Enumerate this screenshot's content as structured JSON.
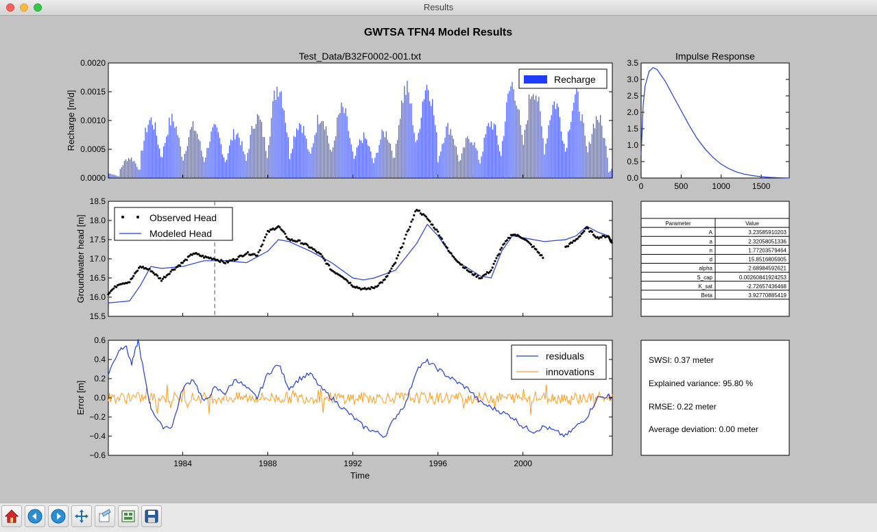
{
  "window": {
    "title": "Results"
  },
  "figure": {
    "title": "GWTSA TFN4 Model Results"
  },
  "recharge_panel": {
    "title": "Test_Data/B32F0002-001.txt",
    "ylabel": "Recharge [m/d]",
    "yticks": [
      "0.0000",
      "0.0005",
      "0.0010",
      "0.0015",
      "0.0020"
    ],
    "legend": "Recharge"
  },
  "impulse_panel": {
    "title": "Impulse Response",
    "yticks": [
      "0.0",
      "0.5",
      "1.0",
      "1.5",
      "2.0",
      "2.5",
      "3.0",
      "3.5"
    ],
    "xticks": [
      "0",
      "500",
      "1000",
      "1500"
    ]
  },
  "head_panel": {
    "ylabel": "Groundwater head [m]",
    "yticks": [
      "15.5",
      "16.0",
      "16.5",
      "17.0",
      "17.5",
      "18.0",
      "18.5"
    ],
    "legend": [
      "Observed Head",
      "Modeled Head"
    ]
  },
  "error_panel": {
    "ylabel": "Error [m]",
    "xlabel": "Time",
    "yticks": [
      "−0.6",
      "−0.4",
      "−0.2",
      "0.0",
      "0.2",
      "0.4",
      "0.6"
    ],
    "xticks": [
      "1984",
      "1988",
      "1992",
      "1996",
      "2000"
    ],
    "legend": [
      "residuals",
      "innovations"
    ]
  },
  "parameter_table": {
    "headers": [
      "Parameter",
      "Value"
    ],
    "rows": [
      [
        "A",
        "3.23585910203"
      ],
      [
        "a",
        "2.32058051336"
      ],
      [
        "n",
        "1.77203579464"
      ],
      [
        "d",
        "15.8516805905"
      ],
      [
        "alpha",
        "2.68984592621"
      ],
      [
        "S_cap",
        "0.00260841924253"
      ],
      [
        "K_sat",
        "-2.72657436468"
      ],
      [
        "Beta",
        "3.92770885419"
      ]
    ]
  },
  "stats": [
    "SWSI: 0.37 meter",
    "Explained variance: 95.80 %",
    "RMSE: 0.22 meter",
    "Average deviation: 0.00 meter"
  ],
  "colors": {
    "recharge": "#1f3cff",
    "modeled": "#1f3cdf",
    "residuals": "#1f3cdf",
    "innovations": "#ff9a1a"
  },
  "toolbar": [
    "home-icon",
    "back-icon",
    "forward-icon",
    "pan-icon",
    "configure-icon",
    "subplots-icon",
    "save-icon"
  ],
  "chart_data": [
    {
      "type": "bar",
      "title": "Test_Data/B32F0002-001.txt",
      "ylabel": "Recharge [m/d]",
      "ylim": [
        0,
        0.002
      ],
      "xlim": [
        1980.5,
        2004.2
      ],
      "series": [
        {
          "name": "Recharge"
        }
      ],
      "season_peaks": [
        [
          1981,
          0.0004
        ],
        [
          1982,
          0.00115
        ],
        [
          1983,
          0.00115
        ],
        [
          1984,
          0.001
        ],
        [
          1985,
          0.00095
        ],
        [
          1986,
          0.0009
        ],
        [
          1987,
          0.0012
        ],
        [
          1988,
          0.00185
        ],
        [
          1989,
          0.0011
        ],
        [
          1990,
          0.00125
        ],
        [
          1991,
          0.00135
        ],
        [
          1992,
          0.0008
        ],
        [
          1993,
          0.0009
        ],
        [
          1994,
          0.00175
        ],
        [
          1995,
          0.00185
        ],
        [
          1996,
          0.001
        ],
        [
          1997,
          0.0008
        ],
        [
          1998,
          0.0011
        ],
        [
          1999,
          0.00185
        ],
        [
          2000,
          0.0018
        ],
        [
          2001,
          0.0015
        ],
        [
          2002,
          0.0016
        ],
        [
          2003,
          0.0012
        ],
        [
          2004,
          0.0003
        ]
      ]
    },
    {
      "type": "line",
      "title": "Impulse Response",
      "xlim": [
        0,
        1850
      ],
      "ylim": [
        0,
        3.5
      ],
      "series": [
        {
          "x": [
            0,
            25,
            50,
            100,
            150,
            200,
            300,
            400,
            500,
            600,
            700,
            800,
            900,
            1000,
            1100,
            1200,
            1300,
            1400,
            1500,
            1600,
            1700,
            1850
          ],
          "y": [
            0.7,
            2.2,
            2.8,
            3.25,
            3.36,
            3.3,
            2.95,
            2.5,
            2.05,
            1.6,
            1.2,
            0.88,
            0.62,
            0.42,
            0.28,
            0.18,
            0.11,
            0.07,
            0.04,
            0.02,
            0.01,
            0.0
          ]
        }
      ]
    },
    {
      "type": "line",
      "ylabel": "Groundwater head [m]",
      "xlim": [
        1980.5,
        2004.2
      ],
      "ylim": [
        15.5,
        18.5
      ],
      "vline_x": 1985.5,
      "series": [
        {
          "name": "Observed Head",
          "style": "dots",
          "x": [
            1980.5,
            1981,
            1981.5,
            1982,
            1982.5,
            1983,
            1983.5,
            1984,
            1984.5,
            1985,
            1985.5,
            1986,
            1986.5,
            1987,
            1987.5,
            1988,
            1988.5,
            1989,
            1989.5,
            1990,
            1990.5,
            1991,
            1991.5,
            1992,
            1992.5,
            1993,
            1993.5,
            1994,
            1994.5,
            1995,
            1995.5,
            1996,
            1996.5,
            1997,
            1997.5,
            1998,
            1998.5,
            1999,
            1999.5,
            2000,
            2000.5,
            2001,
            2001.5,
            2002,
            2002.5,
            2003,
            2003.5,
            2004,
            2004.2
          ],
          "y": [
            16.1,
            16.35,
            16.4,
            16.8,
            16.7,
            16.45,
            16.7,
            16.9,
            17.15,
            17.05,
            17.0,
            16.9,
            17.0,
            17.15,
            17.1,
            17.7,
            17.85,
            17.5,
            17.45,
            17.3,
            17.1,
            16.7,
            16.55,
            16.3,
            16.2,
            16.25,
            16.45,
            16.9,
            17.6,
            18.3,
            18.05,
            17.7,
            17.2,
            16.9,
            16.65,
            16.5,
            16.7,
            17.3,
            17.65,
            17.55,
            17.3,
            17.0,
            null,
            17.3,
            17.5,
            17.8,
            17.55,
            17.6,
            17.4
          ]
        },
        {
          "name": "Modeled Head",
          "style": "line",
          "x": [
            1980.5,
            1981.5,
            1982,
            1982.5,
            1983,
            1984,
            1985,
            1986,
            1987,
            1988,
            1988.5,
            1989,
            1990,
            1991,
            1992,
            1992.5,
            1993,
            1994,
            1995,
            1995.5,
            1996,
            1996.5,
            1997,
            1998,
            1998.5,
            1999,
            1999.5,
            2000,
            2000.5,
            2001,
            2002,
            2002.5,
            2003,
            2003.5,
            2004,
            2004.2
          ],
          "y": [
            15.85,
            15.9,
            16.3,
            16.8,
            16.75,
            16.8,
            16.95,
            16.95,
            16.9,
            17.2,
            17.5,
            17.45,
            17.2,
            16.9,
            16.5,
            16.45,
            16.5,
            16.7,
            17.4,
            17.9,
            17.6,
            17.2,
            16.9,
            16.55,
            16.5,
            17.2,
            17.6,
            17.55,
            17.5,
            17.45,
            17.5,
            17.6,
            17.85,
            17.7,
            17.6,
            17.4
          ]
        }
      ]
    },
    {
      "type": "line",
      "ylabel": "Error [m]",
      "xlabel": "Time",
      "xlim": [
        1980.5,
        2004.2
      ],
      "ylim": [
        -0.6,
        0.6
      ],
      "series": [
        {
          "name": "residuals",
          "x": [
            1980.5,
            1981,
            1981.3,
            1981.6,
            1981.9,
            1982.3,
            1982.5,
            1983,
            1983.5,
            1984,
            1984.5,
            1985,
            1985.5,
            1986,
            1986.5,
            1987,
            1987.5,
            1988,
            1988.5,
            1989,
            1989.5,
            1990,
            1990.5,
            1991,
            1991.5,
            1992,
            1992.5,
            1993,
            1993.5,
            1994,
            1994.5,
            1995,
            1995.5,
            1996,
            1996.5,
            1997,
            1997.5,
            1998,
            1998.5,
            1999,
            1999.5,
            2000,
            2000.5,
            2001,
            2001.5,
            2002,
            2002.5,
            2003,
            2003.5,
            2004,
            2004.2
          ],
          "y": [
            0.25,
            0.5,
            0.55,
            0.35,
            0.6,
            0.1,
            -0.1,
            -0.3,
            -0.3,
            0.1,
            0.2,
            -0.05,
            0.1,
            0.05,
            0.2,
            0.1,
            0.0,
            0.25,
            0.35,
            0.1,
            0.2,
            0.25,
            0.1,
            0.0,
            -0.1,
            -0.2,
            -0.3,
            -0.35,
            -0.4,
            -0.2,
            -0.05,
            0.3,
            0.38,
            0.3,
            0.22,
            0.15,
            0.08,
            -0.05,
            -0.1,
            -0.15,
            -0.2,
            -0.3,
            -0.35,
            -0.3,
            -0.35,
            -0.4,
            -0.3,
            -0.2,
            0.0,
            0.02,
            0.0
          ]
        },
        {
          "name": "innovations",
          "x": [
            1980.5,
            1984,
            1988,
            1992,
            1996,
            2000,
            2004.2
          ],
          "y": [
            0.0,
            0.0,
            0.0,
            0.0,
            0.0,
            0.0,
            0.0
          ]
        }
      ]
    }
  ]
}
